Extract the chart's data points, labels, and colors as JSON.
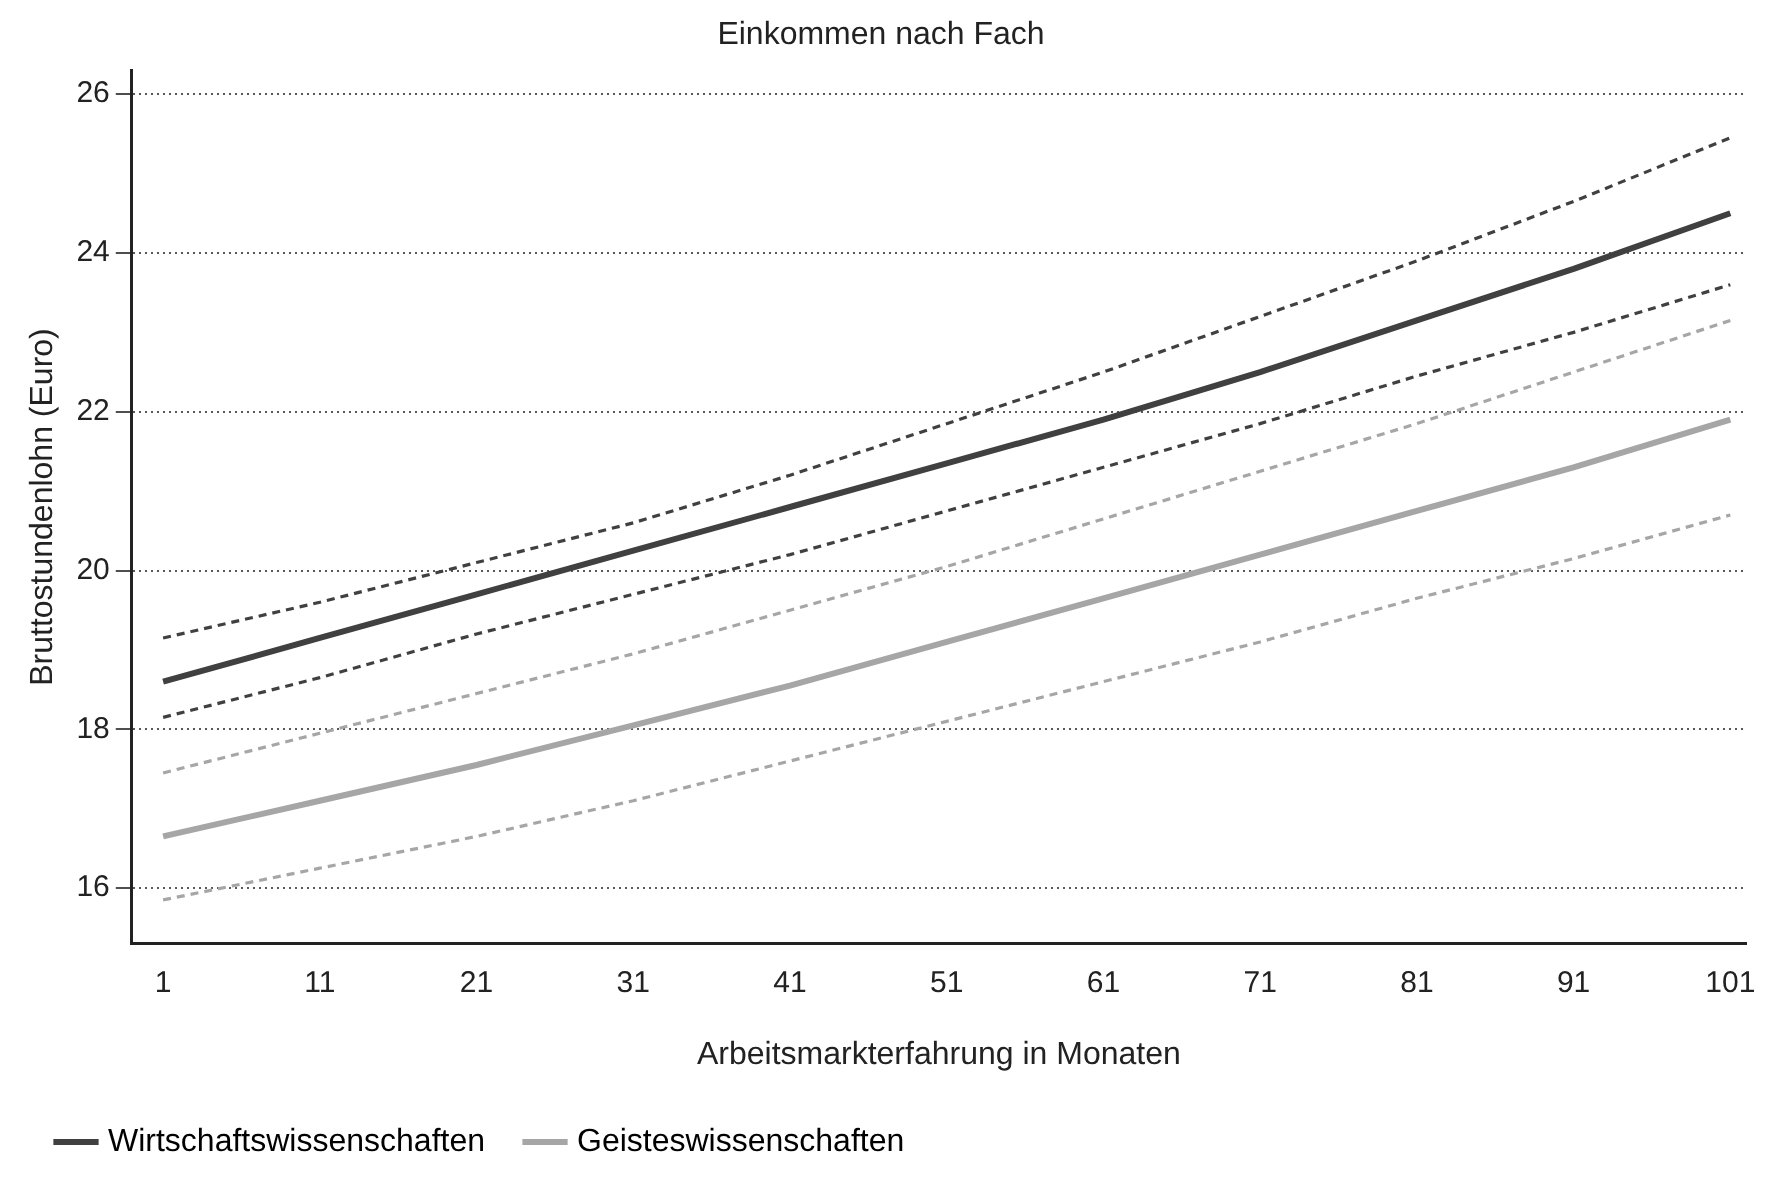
{
  "chart_data": {
    "type": "line",
    "title": "Einkommen nach Fach",
    "xlabel": "Arbeitsmarkterfahrung in Monaten",
    "ylabel": "Bruttostundenlohn (Euro)",
    "x": [
      1,
      11,
      21,
      31,
      41,
      51,
      61,
      71,
      81,
      91,
      101
    ],
    "series": [
      {
        "name": "Wirtschaftswissenschaften",
        "color": "#404040",
        "line_style": "solid",
        "values": [
          18.6,
          19.15,
          19.7,
          20.25,
          20.8,
          21.35,
          21.9,
          22.5,
          23.15,
          23.8,
          24.5
        ]
      },
      {
        "color": "#404040",
        "line_style": "dashed",
        "values": [
          19.15,
          19.6,
          20.1,
          20.6,
          21.2,
          21.85,
          22.5,
          23.2,
          23.9,
          24.65,
          25.45
        ]
      },
      {
        "color": "#404040",
        "line_style": "dashed",
        "values": [
          18.15,
          18.65,
          19.2,
          19.7,
          20.2,
          20.75,
          21.3,
          21.85,
          22.45,
          23.0,
          23.6
        ]
      },
      {
        "name": "Geisteswissenschaften",
        "color": "#a6a6a6",
        "line_style": "solid",
        "values": [
          16.65,
          17.1,
          17.55,
          18.05,
          18.55,
          19.1,
          19.65,
          20.2,
          20.75,
          21.3,
          21.9
        ]
      },
      {
        "color": "#a6a6a6",
        "line_style": "dashed",
        "values": [
          17.45,
          17.95,
          18.45,
          18.95,
          19.5,
          20.05,
          20.65,
          21.25,
          21.85,
          22.5,
          23.15
        ]
      },
      {
        "color": "#a6a6a6",
        "line_style": "dashed",
        "values": [
          15.85,
          16.25,
          16.65,
          17.1,
          17.6,
          18.1,
          18.6,
          19.1,
          19.65,
          20.15,
          20.7
        ]
      }
    ],
    "xlim": [
      -1,
      102
    ],
    "xticks": [
      1,
      11,
      21,
      31,
      41,
      51,
      61,
      71,
      81,
      91,
      101
    ],
    "ylim": [
      15.3,
      26.3
    ],
    "yticks": [
      16,
      18,
      20,
      22,
      24,
      26
    ],
    "grid": "y",
    "legend": "bottom left",
    "marker": "none"
  }
}
